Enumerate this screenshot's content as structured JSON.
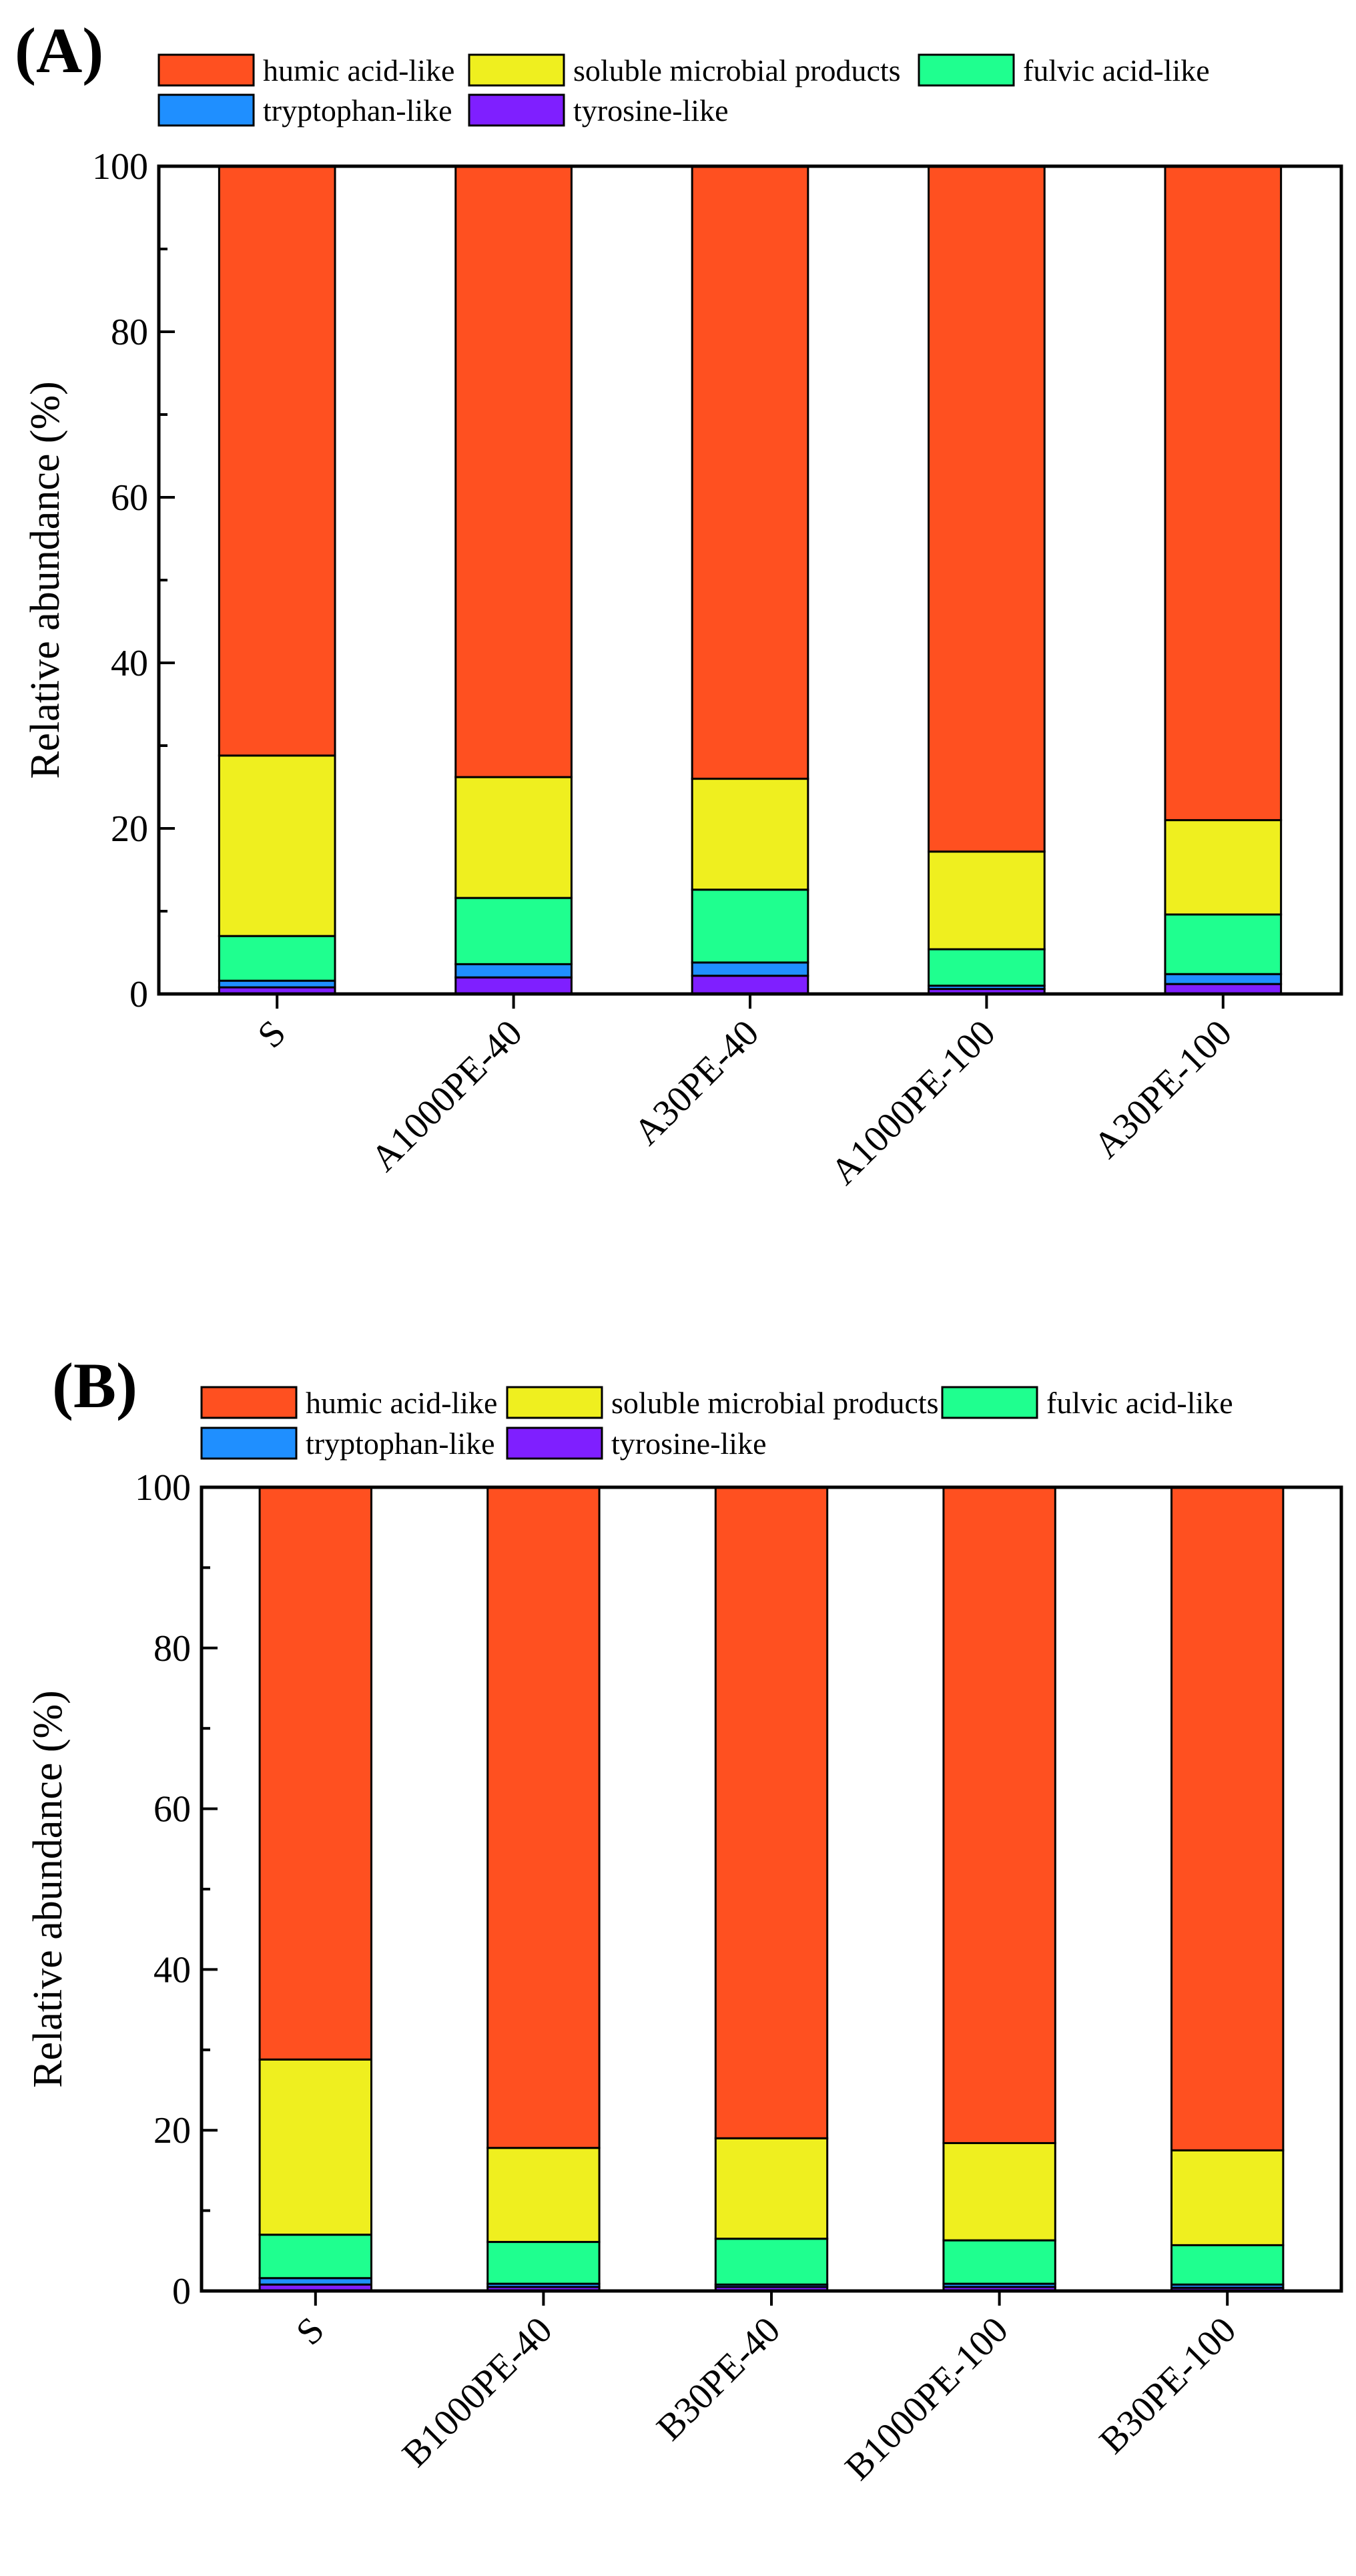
{
  "chart_data": [
    {
      "panel": "(A)",
      "type": "bar",
      "stacked": true,
      "title": "",
      "xlabel": "",
      "ylabel": "Relative abundance (%)",
      "ylim": [
        0,
        100
      ],
      "yticks": [
        "0",
        "20",
        "40",
        "60",
        "80",
        "100"
      ],
      "categories": [
        "S",
        "A1000PE-40",
        "A30PE-40",
        "A1000PE-100",
        "A30PE-100"
      ],
      "legend_position": "top",
      "series": [
        {
          "name": "tyrosine-like",
          "color": "#7f1fff",
          "values": [
            0.8,
            2.0,
            2.2,
            0.6,
            1.2
          ]
        },
        {
          "name": "tryptophan-like",
          "color": "#1f8fff",
          "values": [
            0.8,
            1.6,
            1.6,
            0.4,
            1.2
          ]
        },
        {
          "name": "fulvic acid-like",
          "color": "#1fff8f",
          "values": [
            5.4,
            8.0,
            8.8,
            4.4,
            7.2
          ]
        },
        {
          "name": "soluble microbial products",
          "color": "#efef1f",
          "values": [
            21.8,
            14.6,
            13.4,
            11.8,
            11.4
          ]
        },
        {
          "name": "humic acid-like",
          "color": "#ff5020",
          "values": [
            71.2,
            73.8,
            74.0,
            82.8,
            79.0
          ]
        }
      ]
    },
    {
      "panel": "(B)",
      "type": "bar",
      "stacked": true,
      "title": "",
      "xlabel": "",
      "ylabel": "Relative abundance (%)",
      "ylim": [
        0,
        100
      ],
      "yticks": [
        "0",
        "20",
        "40",
        "60",
        "80",
        "100"
      ],
      "categories": [
        "S",
        "B1000PE-40",
        "B30PE-40",
        "B1000PE-100",
        "B30PE-100"
      ],
      "legend_position": "top",
      "series": [
        {
          "name": "tyrosine-like",
          "color": "#7f1fff",
          "values": [
            0.8,
            0.5,
            0.5,
            0.5,
            0.4
          ]
        },
        {
          "name": "tryptophan-like",
          "color": "#1f8fff",
          "values": [
            0.8,
            0.4,
            0.3,
            0.4,
            0.4
          ]
        },
        {
          "name": "fulvic acid-like",
          "color": "#1fff8f",
          "values": [
            5.4,
            5.2,
            5.7,
            5.4,
            4.9
          ]
        },
        {
          "name": "soluble microbial products",
          "color": "#efef1f",
          "values": [
            21.8,
            11.7,
            12.5,
            12.1,
            11.8
          ]
        },
        {
          "name": "humic acid-like",
          "color": "#ff5020",
          "values": [
            71.2,
            82.2,
            81.0,
            81.6,
            82.5
          ]
        }
      ]
    }
  ]
}
